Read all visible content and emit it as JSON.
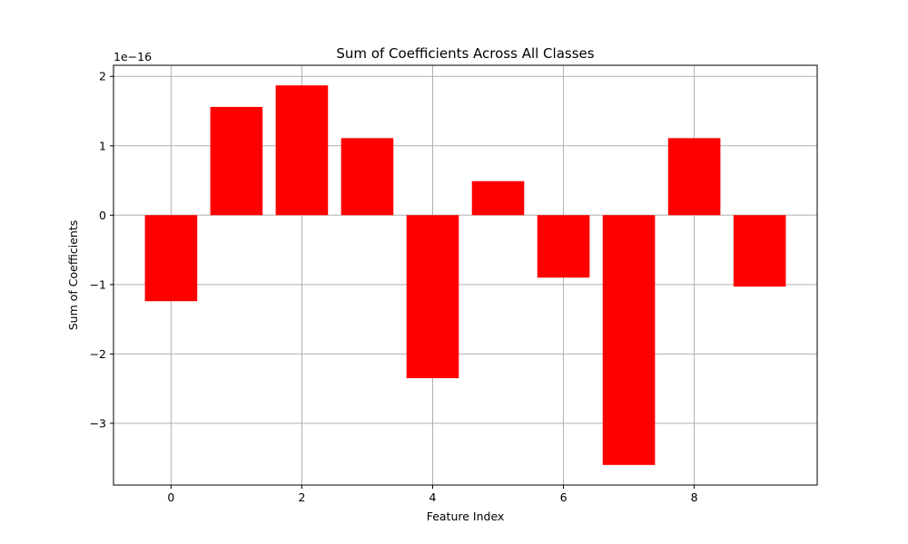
{
  "chart_data": {
    "type": "bar",
    "title": "Sum of Coefficients Across All Classes",
    "xlabel": "Feature Index",
    "ylabel": "Sum of Coefficients",
    "y_offset_label": "1e−16",
    "x": [
      0,
      1,
      2,
      3,
      4,
      5,
      6,
      7,
      8,
      9
    ],
    "values": [
      -1.24,
      1.56,
      1.87,
      1.11,
      -2.35,
      0.49,
      -0.9,
      -3.6,
      1.11,
      -1.03
    ],
    "value_multiplier": 1e-16,
    "xlim": [
      -0.88,
      9.88
    ],
    "ylim": [
      -3.89,
      2.16
    ],
    "x_ticks": [
      0,
      2,
      4,
      6,
      8
    ],
    "x_tick_labels": [
      "0",
      "2",
      "4",
      "6",
      "8"
    ],
    "y_ticks": [
      -3,
      -2,
      -1,
      0,
      1,
      2
    ],
    "y_tick_labels": [
      "−3",
      "−2",
      "−1",
      "0",
      "1",
      "2"
    ],
    "bar_color": "#ff0000",
    "grid": true,
    "grid_color": "#b0b0b0"
  }
}
